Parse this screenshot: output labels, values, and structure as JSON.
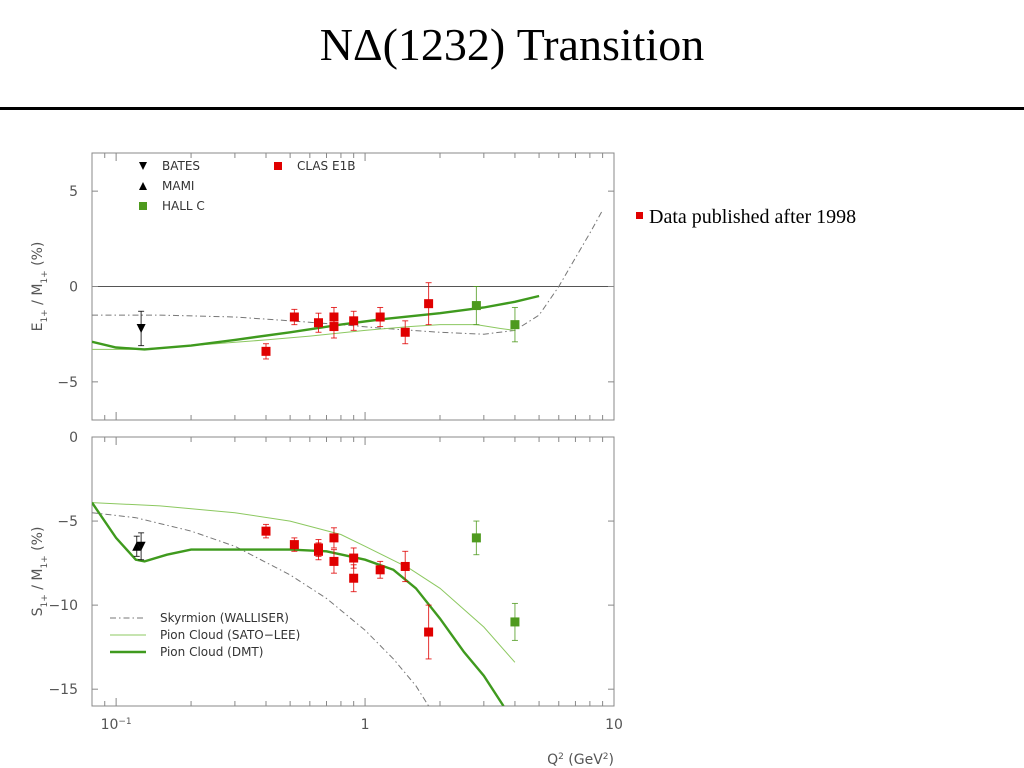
{
  "title": "NΔ(1232) Transition",
  "bullet": {
    "text": "Data published after 1998",
    "color": "#e00000"
  },
  "colors": {
    "clas": "#e00000",
    "hallc": "#4e9a1e",
    "dmt": "#3f9a1e",
    "sato": "#8cc860",
    "skyrmion": "#777777",
    "frame": "#888888"
  },
  "chart_data": {
    "type": "scatter",
    "xscale": "log",
    "xlim": [
      0.08,
      10
    ],
    "xticks": [
      {
        "value": 0.1,
        "label": "10",
        "sup": "−1"
      },
      {
        "value": 1,
        "label": "1",
        "sup": ""
      },
      {
        "value": 10,
        "label": "10",
        "sup": ""
      }
    ],
    "xlabel": {
      "main": "Q",
      "sup": "2",
      "unit": " (GeV",
      "sup2": "2",
      "end": ")"
    },
    "legend_points": [
      {
        "label": "BATES",
        "marker": "triangle-down",
        "color": "#000000"
      },
      {
        "label": "MAMI",
        "marker": "triangle-up",
        "color": "#000000"
      },
      {
        "label": "HALL C",
        "marker": "square",
        "color": "#4e9a1e"
      },
      {
        "label": "CLAS E1B",
        "marker": "square",
        "color": "#e00000"
      }
    ],
    "legend_curves": [
      {
        "label": "Skyrmion (WALLISER)",
        "style": "dashdot",
        "color": "#777777"
      },
      {
        "label": "Pion Cloud (SATO−LEE)",
        "style": "thin",
        "color": "#8cc860"
      },
      {
        "label": "Pion Cloud (DMT)",
        "style": "thick",
        "color": "#3f9a1e"
      }
    ],
    "panels": [
      {
        "name": "E1+/M1+",
        "ylabel": {
          "a": "E",
          "as": "1+",
          "b": " / M",
          "bs": "1+",
          "c": " (%)"
        },
        "ylim": [
          -7,
          7
        ],
        "yticks": [
          5,
          0,
          -5
        ],
        "ytick_labels": [
          "5",
          "0",
          "−5"
        ],
        "zero_line": true,
        "series": [
          {
            "label": "BATES",
            "marker": "triangle-down",
            "color": "#000000",
            "points": [
              [
                0.126,
                -2.2,
                0.9
              ]
            ]
          },
          {
            "label": "CLAS E1B",
            "marker": "square",
            "color": "#e00000",
            "points": [
              [
                0.4,
                -3.4,
                0.4
              ],
              [
                0.52,
                -1.6,
                0.4
              ],
              [
                0.65,
                -1.9,
                0.5
              ],
              [
                0.75,
                -2.1,
                0.6
              ],
              [
                0.75,
                -1.6,
                0.5
              ],
              [
                0.9,
                -1.8,
                0.5
              ],
              [
                1.15,
                -1.6,
                0.5
              ],
              [
                1.45,
                -2.4,
                0.6
              ],
              [
                1.8,
                -0.9,
                1.1
              ]
            ]
          },
          {
            "label": "HALL C",
            "marker": "square",
            "color": "#4e9a1e",
            "points": [
              [
                2.8,
                -1.0,
                1.0
              ],
              [
                4.0,
                -2.0,
                0.9
              ]
            ]
          }
        ],
        "curves": [
          {
            "label": "Skyrmion (WALLISER)",
            "points": [
              [
                0.08,
                -1.5
              ],
              [
                0.15,
                -1.5
              ],
              [
                0.3,
                -1.6
              ],
              [
                0.5,
                -1.8
              ],
              [
                0.8,
                -2.0
              ],
              [
                1.2,
                -2.2
              ],
              [
                2.0,
                -2.4
              ],
              [
                3.0,
                -2.5
              ],
              [
                4.0,
                -2.3
              ],
              [
                5.0,
                -1.5
              ],
              [
                6.0,
                0.0
              ],
              [
                7.0,
                1.5
              ],
              [
                8.0,
                2.8
              ],
              [
                9.0,
                4.0
              ]
            ]
          },
          {
            "label": "Pion Cloud (SATO−LEE)",
            "points": [
              [
                0.08,
                -3.3
              ],
              [
                0.12,
                -3.3
              ],
              [
                0.2,
                -3.1
              ],
              [
                0.4,
                -2.8
              ],
              [
                0.6,
                -2.6
              ],
              [
                1.0,
                -2.3
              ],
              [
                1.5,
                -2.1
              ],
              [
                2.0,
                -2.0
              ],
              [
                2.8,
                -2.0
              ],
              [
                3.5,
                -2.2
              ],
              [
                4.0,
                -2.3
              ]
            ]
          },
          {
            "label": "Pion Cloud (DMT)",
            "points": [
              [
                0.08,
                -2.9
              ],
              [
                0.1,
                -3.2
              ],
              [
                0.13,
                -3.3
              ],
              [
                0.2,
                -3.1
              ],
              [
                0.3,
                -2.8
              ],
              [
                0.5,
                -2.4
              ],
              [
                0.8,
                -2.0
              ],
              [
                1.2,
                -1.7
              ],
              [
                2.0,
                -1.4
              ],
              [
                3.0,
                -1.1
              ],
              [
                4.0,
                -0.8
              ],
              [
                5.0,
                -0.5
              ]
            ]
          }
        ]
      },
      {
        "name": "S1+/M1+",
        "ylabel": {
          "a": "S",
          "as": "1+",
          "b": " / M",
          "bs": "1+",
          "c": " (%)"
        },
        "ylim": [
          -16,
          0
        ],
        "yticks": [
          0,
          -5,
          -10,
          -15
        ],
        "ytick_labels": [
          "0",
          "−5",
          "−10",
          "−15"
        ],
        "zero_line": false,
        "series": [
          {
            "label": "BATES",
            "marker": "triangle-down",
            "color": "#000000",
            "points": [
              [
                0.126,
                -6.5,
                0.8
              ]
            ]
          },
          {
            "label": "MAMI",
            "marker": "triangle-up",
            "color": "#000000",
            "points": [
              [
                0.121,
                -6.5,
                0.6
              ]
            ]
          },
          {
            "label": "CLAS E1B",
            "marker": "square",
            "color": "#e00000",
            "points": [
              [
                0.4,
                -5.6,
                0.4
              ],
              [
                0.52,
                -6.4,
                0.4
              ],
              [
                0.65,
                -6.6,
                0.5
              ],
              [
                0.65,
                -6.8,
                0.5
              ],
              [
                0.75,
                -6.0,
                0.6
              ],
              [
                0.75,
                -7.4,
                0.7
              ],
              [
                0.9,
                -7.2,
                0.6
              ],
              [
                0.9,
                -8.4,
                0.8
              ],
              [
                1.15,
                -7.9,
                0.5
              ],
              [
                1.45,
                -7.7,
                0.9
              ],
              [
                1.8,
                -11.6,
                1.6
              ]
            ]
          },
          {
            "label": "HALL C",
            "marker": "square",
            "color": "#4e9a1e",
            "points": [
              [
                2.8,
                -6.0,
                1.0
              ],
              [
                4.0,
                -11.0,
                1.1
              ]
            ]
          }
        ],
        "curves": [
          {
            "label": "Skyrmion (WALLISER)",
            "points": [
              [
                0.08,
                -4.5
              ],
              [
                0.12,
                -4.8
              ],
              [
                0.2,
                -5.6
              ],
              [
                0.3,
                -6.5
              ],
              [
                0.5,
                -8.2
              ],
              [
                0.7,
                -9.6
              ],
              [
                1.0,
                -11.5
              ],
              [
                1.3,
                -13.2
              ],
              [
                1.6,
                -14.8
              ],
              [
                1.8,
                -16.0
              ]
            ]
          },
          {
            "label": "Pion Cloud (SATO−LEE)",
            "points": [
              [
                0.08,
                -3.9
              ],
              [
                0.15,
                -4.1
              ],
              [
                0.3,
                -4.5
              ],
              [
                0.5,
                -5.0
              ],
              [
                0.8,
                -5.8
              ],
              [
                1.0,
                -6.5
              ],
              [
                1.5,
                -7.8
              ],
              [
                2.0,
                -9.0
              ],
              [
                3.0,
                -11.3
              ],
              [
                4.0,
                -13.4
              ]
            ]
          },
          {
            "label": "Pion Cloud (DMT)",
            "points": [
              [
                0.08,
                -3.9
              ],
              [
                0.1,
                -6.0
              ],
              [
                0.12,
                -7.3
              ],
              [
                0.13,
                -7.4
              ],
              [
                0.16,
                -7.0
              ],
              [
                0.2,
                -6.7
              ],
              [
                0.3,
                -6.7
              ],
              [
                0.5,
                -6.7
              ],
              [
                0.7,
                -6.8
              ],
              [
                1.0,
                -7.3
              ],
              [
                1.3,
                -7.9
              ],
              [
                1.6,
                -9.0
              ],
              [
                2.0,
                -10.8
              ],
              [
                2.5,
                -12.8
              ],
              [
                3.0,
                -14.2
              ],
              [
                3.6,
                -16.0
              ]
            ]
          }
        ]
      }
    ]
  }
}
